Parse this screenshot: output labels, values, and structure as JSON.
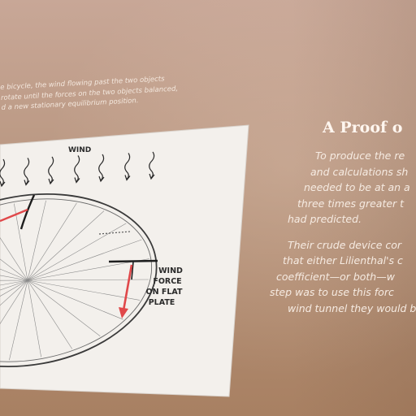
{
  "caption": {
    "lines": [
      "e bicycle, the wind flowing past the two objects",
      "rotate until the forces on the two objects balanced,",
      "d a new stationary equilibrium position."
    ]
  },
  "diagram": {
    "wind_label": "WIND",
    "force_label_lines": [
      "WIND",
      "FORCE",
      "ON FLAT",
      "PLATE"
    ],
    "colors": {
      "panel": "#f3f0ec",
      "ink": "#2a2a2a",
      "arrow": "#e0484a"
    }
  },
  "panel": {
    "title": "A Proof o",
    "paragraph1": [
      "To produce the re",
      "and calculations sh",
      "needed to be at an a",
      "three times greater t",
      "had predicted."
    ],
    "paragraph2": [
      "Their crude device cor",
      "that either Lilienthal's c",
      "coefficient—or both—w",
      "step was to use this forc",
      "wind tunnel they would b"
    ]
  }
}
